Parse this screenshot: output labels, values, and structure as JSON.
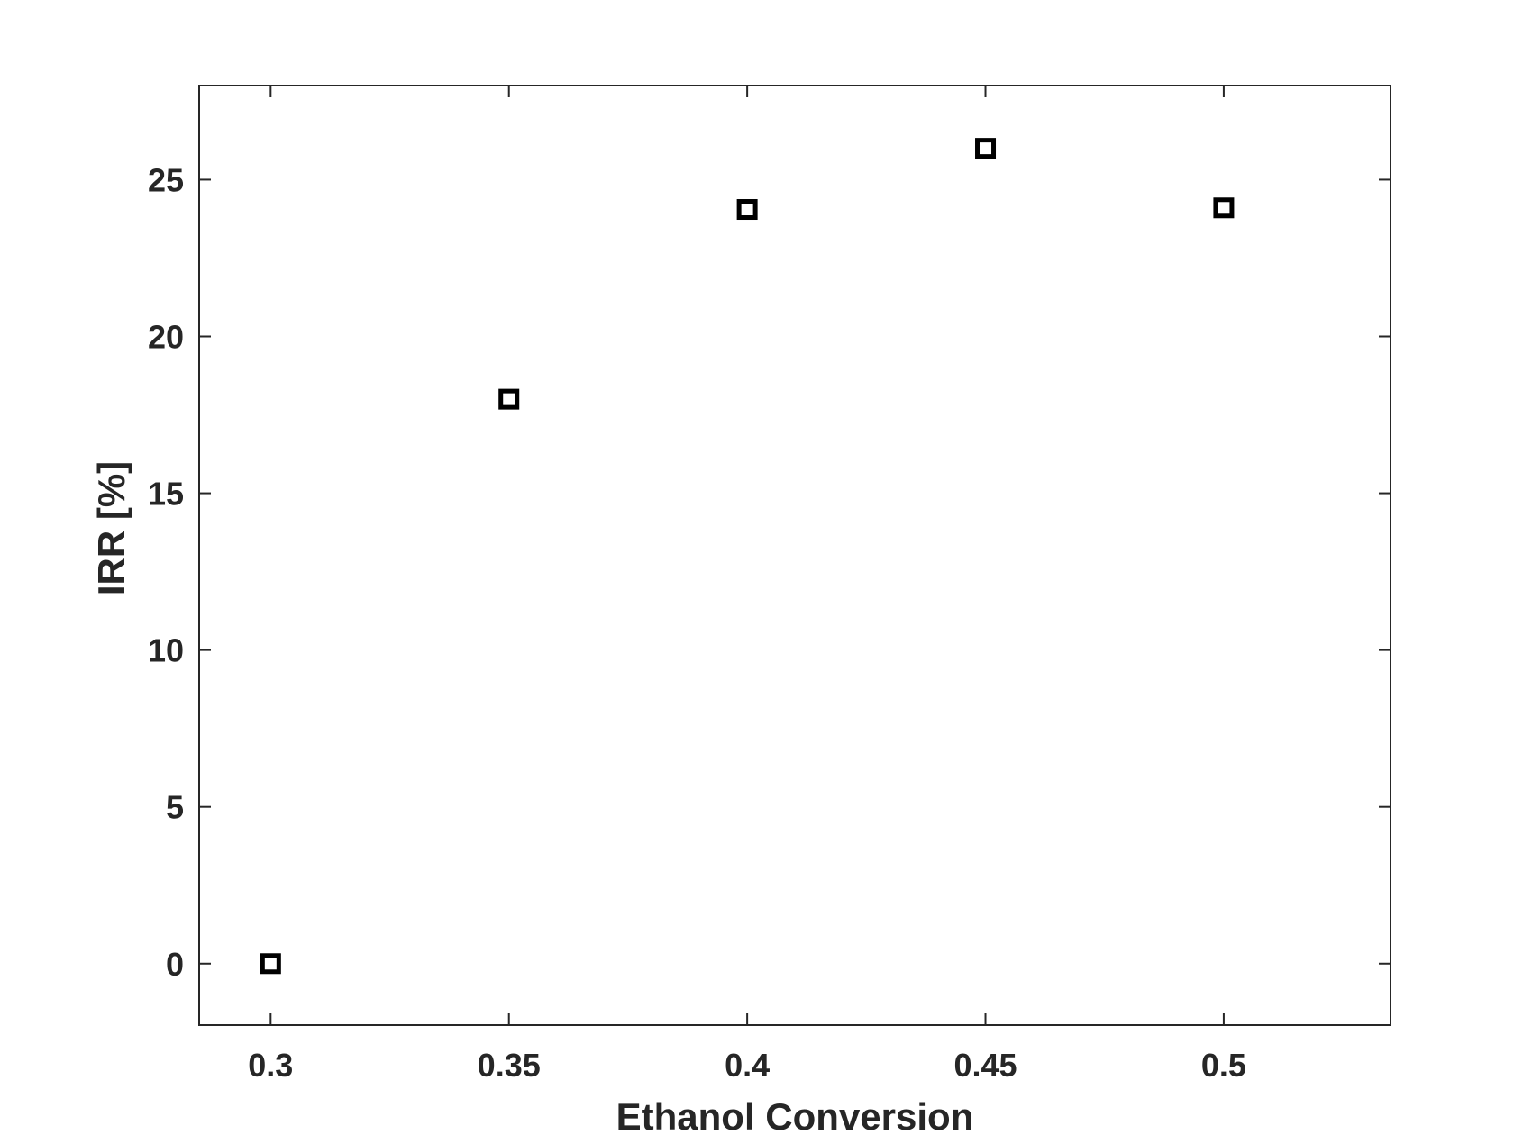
{
  "chart_data": {
    "type": "scatter",
    "title": "",
    "xlabel": "Ethanol Conversion",
    "ylabel": "IRR [%]",
    "xlim": [
      0.285,
      0.535
    ],
    "ylim": [
      -1.96,
      28
    ],
    "x_ticks": [
      0.3,
      0.35,
      0.4,
      0.45,
      0.5
    ],
    "x_tick_labels": [
      "0.3",
      "0.35",
      "0.4",
      "0.45",
      "0.5"
    ],
    "y_ticks": [
      0,
      5,
      10,
      15,
      20,
      25
    ],
    "y_tick_labels": [
      "0",
      "5",
      "10",
      "15",
      "20",
      "25"
    ],
    "grid": false,
    "marker": "square",
    "marker_color": "#000000",
    "series": [
      {
        "x": [
          0.3,
          0.35,
          0.4,
          0.45,
          0.5
        ],
        "y": [
          0,
          18,
          24.05,
          26,
          24.1
        ]
      }
    ]
  }
}
